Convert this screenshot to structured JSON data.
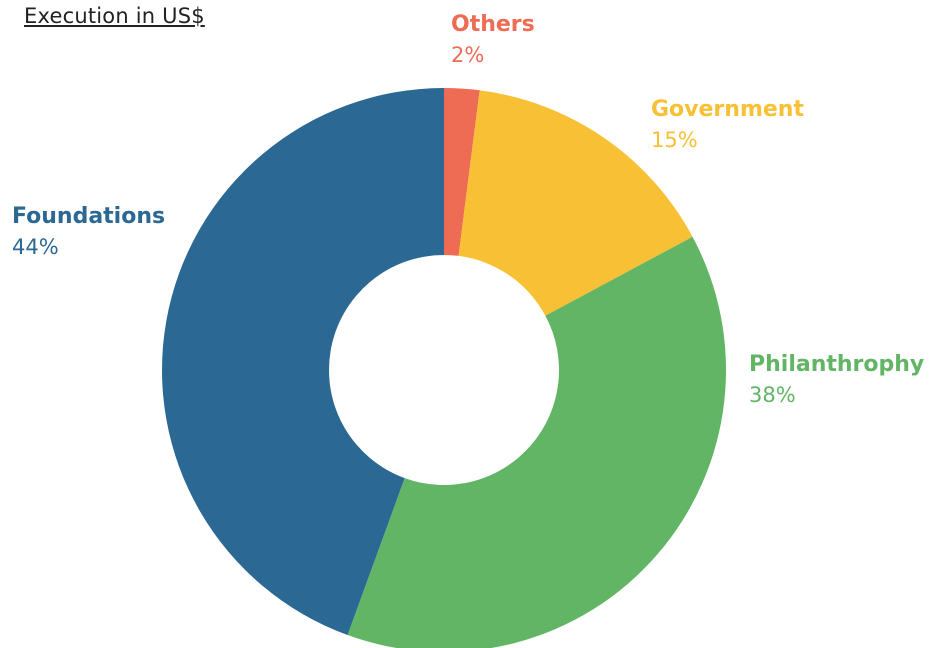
{
  "chart_data": {
    "type": "pie",
    "title": "Execution in US$",
    "donut": true,
    "slices": [
      {
        "label": "Others",
        "percent_label": "2%",
        "value": 2,
        "color": "#EE6C54"
      },
      {
        "label": "Government",
        "percent_label": "15%",
        "value": 15,
        "color": "#F8C035"
      },
      {
        "label": "Philanthrophy",
        "percent_label": "38%",
        "value": 38,
        "color": "#61B564"
      },
      {
        "label": "Foundations",
        "percent_label": "44%",
        "value": 44,
        "color": "#2B6893"
      }
    ]
  }
}
